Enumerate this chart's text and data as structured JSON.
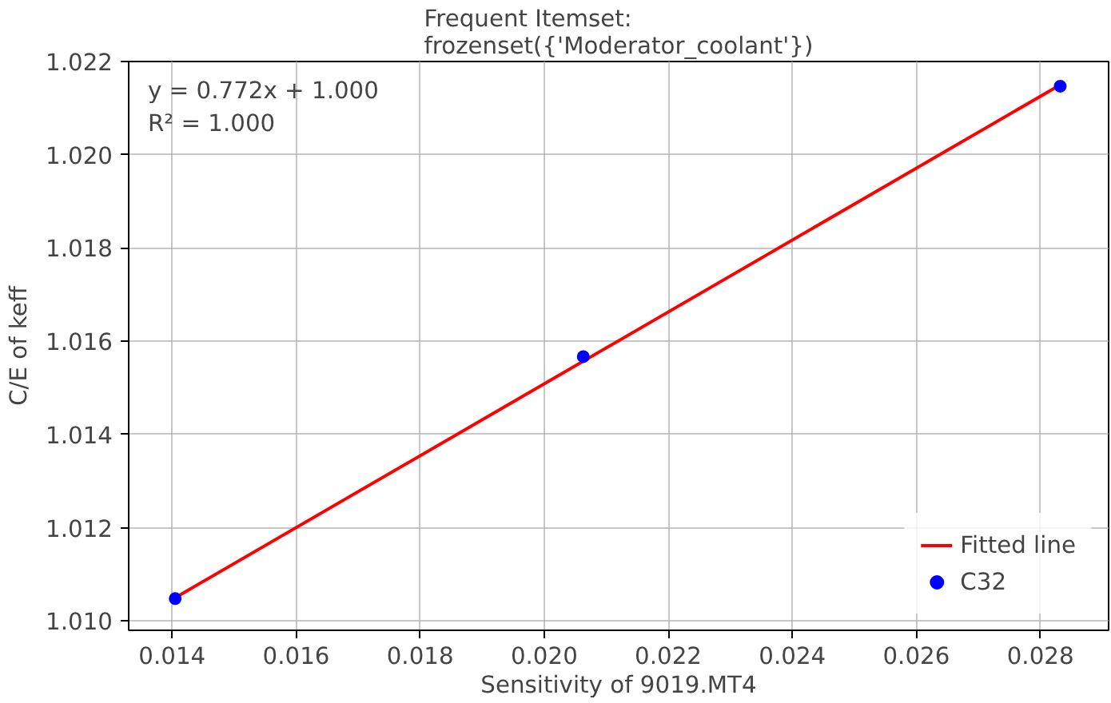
{
  "chart_data": {
    "type": "scatter",
    "title": "Frequent Itemset:\nfrozenset({'Moderator_coolant'})",
    "xlabel": "Sensitivity of 9019.MT4",
    "ylabel": "C/E of keff",
    "annotations": [
      "y = 0.772x + 1.000\nR² = 1.000"
    ],
    "series": [
      {
        "name": "Fitted line",
        "type": "line",
        "color": "#ff0000",
        "x": [
          0.01405,
          0.02832
        ],
        "values": [
          1.0105,
          1.0215
        ]
      },
      {
        "name": "C32",
        "color": "#0000ff",
        "marker": "circle",
        "x": [
          0.01405,
          0.02063,
          0.02832
        ],
        "values": [
          1.01048,
          1.01567,
          1.02147
        ]
      }
    ],
    "xlim": [
      0.0133,
      0.0291
    ],
    "ylim": [
      1.0098,
      1.022
    ],
    "xticks": [
      {
        "value": 0.014,
        "label": "0.014"
      },
      {
        "value": 0.016,
        "label": "0.016"
      },
      {
        "value": 0.018,
        "label": "0.018"
      },
      {
        "value": 0.02,
        "label": "0.020"
      },
      {
        "value": 0.022,
        "label": "0.022"
      },
      {
        "value": 0.024,
        "label": "0.024"
      },
      {
        "value": 0.026,
        "label": "0.026"
      },
      {
        "value": 0.028,
        "label": "0.028"
      }
    ],
    "yticks": [
      {
        "value": 1.01,
        "label": "1.010"
      },
      {
        "value": 1.012,
        "label": "1.012"
      },
      {
        "value": 1.014,
        "label": "1.014"
      },
      {
        "value": 1.016,
        "label": "1.016"
      },
      {
        "value": 1.018,
        "label": "1.018"
      },
      {
        "value": 1.02,
        "label": "1.020"
      },
      {
        "value": 1.022,
        "label": "1.022"
      }
    ],
    "grid": true,
    "legend": "bottom right"
  }
}
